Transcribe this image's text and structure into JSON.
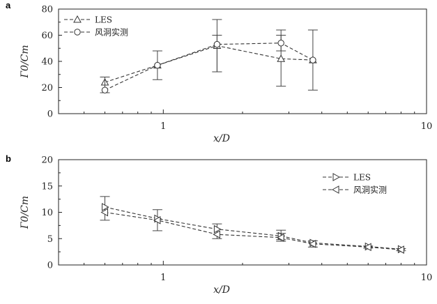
{
  "chart_data": [
    {
      "panel": "a",
      "type": "line",
      "xscale": "log",
      "xlim": [
        0.4,
        10
      ],
      "ylim": [
        0,
        80
      ],
      "xticks": [
        1,
        10
      ],
      "yticks": [
        0,
        20,
        40,
        60,
        80
      ],
      "xlabel": "x/D",
      "ylabel": "Γ0/Cm",
      "legend_position": "top-left",
      "series": [
        {
          "name": "LES",
          "marker": "triangle-up",
          "x": [
            0.6,
            0.95,
            1.6,
            2.8,
            3.7
          ],
          "y": [
            24,
            37,
            52,
            42,
            41
          ],
          "err": [
            null,
            null,
            [
              32,
              72
            ],
            [
              21,
              60
            ],
            null
          ]
        },
        {
          "name": "风洞实测",
          "marker": "circle",
          "x": [
            0.6,
            0.95,
            1.6,
            2.8,
            3.7
          ],
          "y": [
            18,
            37,
            53,
            54,
            41
          ],
          "err": [
            [
              16,
              28
            ],
            [
              26,
              48
            ],
            [
              32,
              60
            ],
            [
              48,
              64
            ],
            [
              18,
              64
            ]
          ]
        }
      ]
    },
    {
      "panel": "b",
      "type": "line",
      "xscale": "log",
      "xlim": [
        0.4,
        10
      ],
      "ylim": [
        0,
        20
      ],
      "xticks": [
        1,
        10
      ],
      "yticks": [
        0,
        5,
        10,
        15,
        20
      ],
      "xlabel": "x/D",
      "ylabel": "Γ0/Cm",
      "legend_position": "top-right",
      "series": [
        {
          "name": "LES",
          "marker": "triangle-right",
          "x": [
            0.6,
            0.95,
            1.6,
            2.8,
            3.7,
            6,
            8
          ],
          "y": [
            11,
            8.8,
            6.8,
            5.5,
            4.2,
            3.5,
            3
          ],
          "err": [
            [
              8.5,
              13
            ],
            [
              6.5,
              10.5
            ],
            [
              5,
              7.8
            ],
            [
              4.5,
              6.6
            ],
            [
              3.4,
              4.6
            ],
            null,
            null
          ]
        },
        {
          "name": "风洞实测",
          "marker": "triangle-left",
          "x": [
            0.6,
            0.95,
            1.6,
            2.8,
            3.7,
            6,
            8
          ],
          "y": [
            10,
            8.5,
            5.8,
            5.2,
            4,
            3.4,
            2.9
          ],
          "err": [
            null,
            null,
            null,
            [
              4.8,
              6
            ],
            null,
            [
              3.2,
              3.6
            ],
            [
              2.7,
              3.1
            ]
          ]
        }
      ]
    }
  ]
}
